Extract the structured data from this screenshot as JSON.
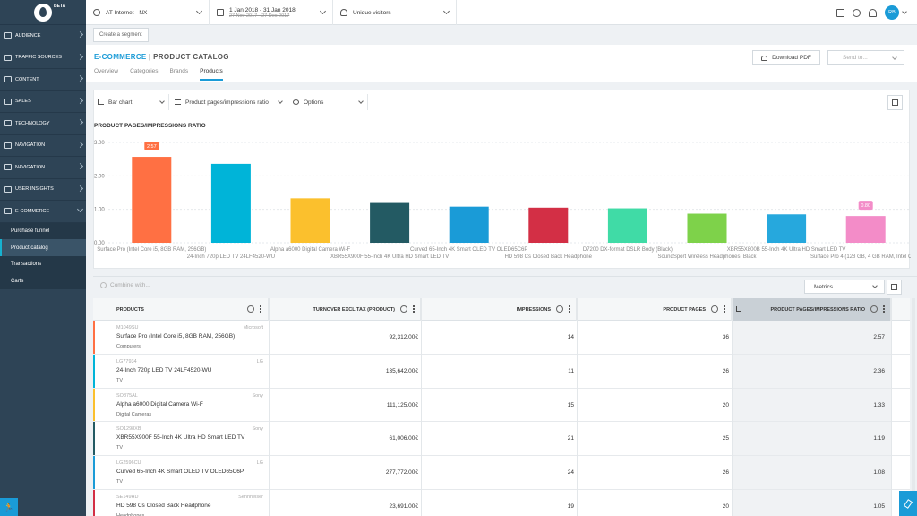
{
  "sidebar": {
    "beta": "BETA",
    "items": [
      {
        "label": "Audience"
      },
      {
        "label": "Traffic sources"
      },
      {
        "label": "Content"
      },
      {
        "label": "Sales"
      },
      {
        "label": "Technology"
      },
      {
        "label": "Navigation"
      },
      {
        "label": "Navigation"
      },
      {
        "label": "User insights"
      },
      {
        "label": "E-commerce"
      }
    ],
    "subitems": [
      "Purchase funnel",
      "Product catalog",
      "Transactions",
      "Carts"
    ],
    "help_glyph": "🏃"
  },
  "topbar": {
    "site": "AT Internet - NX",
    "date_range": "1 Jan 2018 - 31 Jan 2018",
    "compare_range": "27 Nov 2017 - 27 Dec 2017",
    "metric": "Unique visitors",
    "avatar": "RB"
  },
  "segment": {
    "create_label": "Create a segment"
  },
  "header": {
    "section": "E-COMMERCE",
    "separator": " | ",
    "page": "PRODUCT CATALOG",
    "tabs": [
      "Overview",
      "Categories",
      "Brands",
      "Products"
    ],
    "download_label": "Download PDF",
    "send_label": "Send to..."
  },
  "chart_controls": {
    "type_label": "Bar chart",
    "metric_label": "Product pages/impressions ratio",
    "options_label": "Options"
  },
  "chart_data": {
    "type": "bar",
    "title": "PRODUCT PAGES/IMPRESSIONS RATIO",
    "y_ticks": [
      "3.00",
      "2.00",
      "1.00",
      "0.00"
    ],
    "ylim": [
      0,
      3
    ],
    "grid": true,
    "categories": [
      "Surface Pro (Intel Core i5, 8GB RAM, 256GB)",
      "24-Inch 720p LED TV 24LF4520-WU",
      "Alpha a6000 Digital Camera Wi-F",
      "XBR55X900F 55-Inch 4K Ultra HD Smart LED TV",
      "Curved 65-Inch 4K Smart OLED TV OLED65C6P",
      "HD 598 Cs Closed Back Headphone",
      "D7200 DX-format DSLR Body (Black)",
      "SoundSport Wireless Headphones, Black",
      "XBR55X800B 55-Inch 4K Ultra HD Smart LED TV",
      "Surface Pro 4 (128 GB, 4 GB RAM, Intel Cor..."
    ],
    "values": [
      2.57,
      2.36,
      1.33,
      1.19,
      1.08,
      1.05,
      1.03,
      0.87,
      0.85,
      0.8
    ],
    "colors": [
      "#ff7043",
      "#00b4d8",
      "#fbc02d",
      "#235a63",
      "#1a9bd7",
      "#d32f45",
      "#40dba6",
      "#7ed24a",
      "#26a8dd",
      "#f38cc8"
    ],
    "highlight_labels": [
      "2.57",
      "",
      "",
      "",
      "",
      "",
      "",
      "",
      "",
      "0.80"
    ],
    "highlight_colors": [
      "#ff7043",
      "",
      "",
      "",
      "",
      "",
      "",
      "",
      "",
      "#f38cc8"
    ]
  },
  "table_tools": {
    "combine_label": "Combine with...",
    "metrics_label": "Metrics"
  },
  "table": {
    "headers": [
      "Products",
      "Turnover excl tax (Product)",
      "Impressions",
      "Product pages",
      "Product pages/impressions ratio"
    ],
    "rows": [
      {
        "sku": "M1049SU",
        "brand": "Microsoft",
        "name": "Surface Pro (Intel Core i5, 8GB RAM, 256GB)",
        "category": "Computers",
        "turnover": "92,312.00€",
        "impressions": "14",
        "pages": "36",
        "ratio": "2.57",
        "color": "#ff7043"
      },
      {
        "sku": "LG77934",
        "brand": "LG",
        "name": "24-Inch 720p LED TV 24LF4520-WU",
        "category": "TV",
        "turnover": "135,642.00€",
        "impressions": "11",
        "pages": "26",
        "ratio": "2.36",
        "color": "#00b4d8"
      },
      {
        "sku": "SO875AL",
        "brand": "Sony",
        "name": "Alpha a6000 Digital Camera Wi-F",
        "category": "Digital Cameras",
        "turnover": "111,125.00€",
        "impressions": "15",
        "pages": "20",
        "ratio": "1.33",
        "color": "#fbc02d"
      },
      {
        "sku": "SO1298XB",
        "brand": "Sony",
        "name": "XBR55X900F 55-Inch 4K Ultra HD Smart LED TV",
        "category": "TV",
        "turnover": "61,006.00€",
        "impressions": "21",
        "pages": "25",
        "ratio": "1.19",
        "color": "#235a63"
      },
      {
        "sku": "LG2596CU",
        "brand": "LG",
        "name": "Curved 65-Inch 4K Smart OLED TV OLED65C6P",
        "category": "TV",
        "turnover": "277,772.00€",
        "impressions": "24",
        "pages": "26",
        "ratio": "1.08",
        "color": "#1a9bd7"
      },
      {
        "sku": "SE149HD",
        "brand": "Sennheiser",
        "name": "HD 598 Cs Closed Back Headphone",
        "category": "Headphones",
        "turnover": "23,691.00€",
        "impressions": "19",
        "pages": "20",
        "ratio": "1.05",
        "color": "#d32f45"
      }
    ]
  }
}
